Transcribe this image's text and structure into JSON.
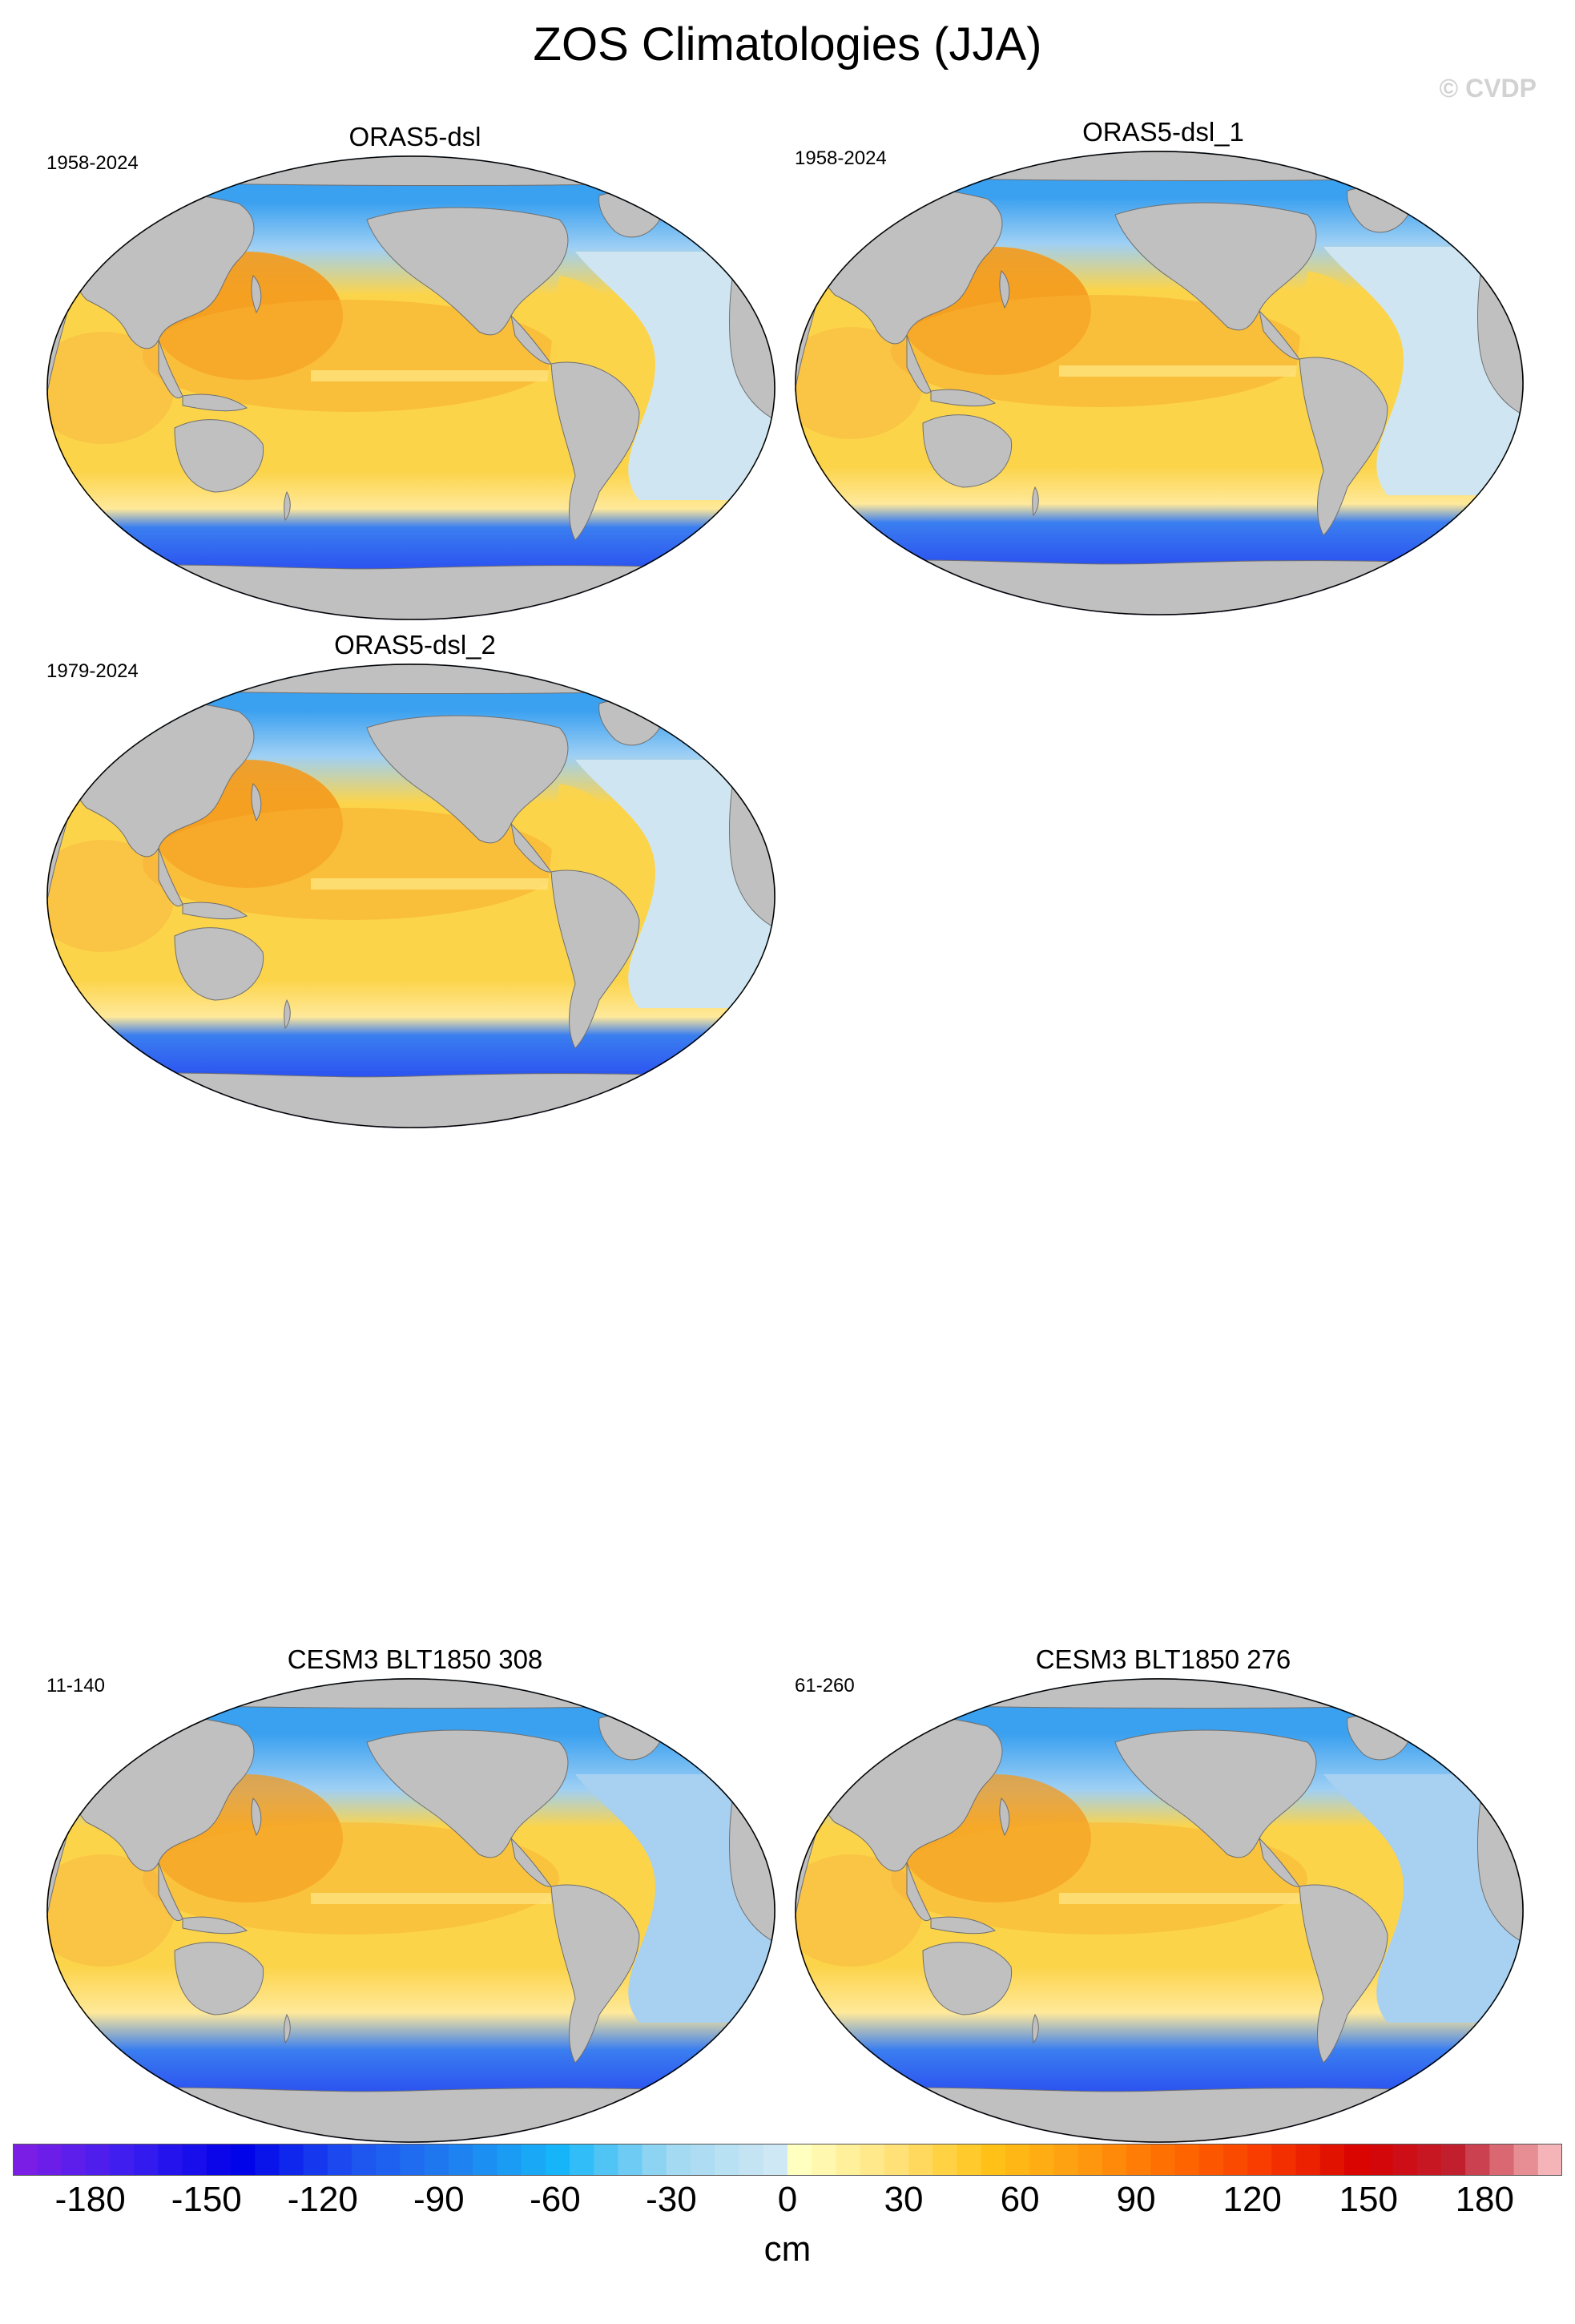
{
  "title": "ZOS Climatologies (JJA)",
  "watermark": "© CVDP",
  "panels": [
    {
      "name": "ORAS5-dsl",
      "period": "1958-2024"
    },
    {
      "name": "ORAS5-dsl_1",
      "period": "1958-2024"
    },
    {
      "name": "ORAS5-dsl_2",
      "period": "1979-2024"
    },
    {
      "name": "CESM3 BLT1850 308",
      "period": "11-140"
    },
    {
      "name": "CESM3 BLT1850 276",
      "period": "61-260"
    }
  ],
  "colorbar": {
    "unit": "cm",
    "range": [
      -200,
      200
    ],
    "tick_labels": [
      "-180",
      "-150",
      "-120",
      "-90",
      "-60",
      "-30",
      "0",
      "30",
      "60",
      "90",
      "120",
      "150",
      "180"
    ],
    "negative_colors": [
      "#7a1ee6",
      "#3a1ef0",
      "#0000e8",
      "#1e4ef0",
      "#1f7ff0",
      "#16b6f8",
      "#9fd8f2",
      "#cfe8f5"
    ],
    "positive_colors": [
      "#ffffc0",
      "#ffe27a",
      "#ffc418",
      "#ff9c10",
      "#ff6a00",
      "#f83800",
      "#d80000",
      "#c02030",
      "#f4b4b8"
    ]
  },
  "map_colors": {
    "land": "#c0c0c0",
    "warm_pool": "#f49a1c",
    "subtropical": "#fcd44a",
    "equatorial_pacific": "#fde07a",
    "atlantic": "#cfe6f2",
    "atlantic_cesm": "#a8d0f0",
    "arctic": "#3aa0f0",
    "southern_ocean": "#2a4ef0",
    "antarctic_edge": "#4a1ee8"
  }
}
